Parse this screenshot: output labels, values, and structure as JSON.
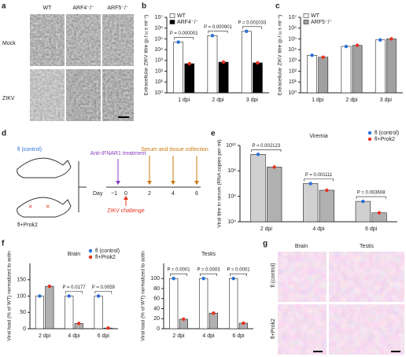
{
  "panel_letters": [
    "a",
    "b",
    "c",
    "d",
    "e",
    "f",
    "g"
  ],
  "panel_a": {
    "columns": [
      "WT",
      "ARF4⁻/⁻",
      "ARF5⁻/⁻"
    ],
    "rows": [
      "Mock",
      "ZIKV"
    ]
  },
  "panel_d": {
    "groups": [
      "fl (control)",
      "fl+Prok2"
    ],
    "treatment": "Anti-IFNAR1 treatment",
    "collection": "Serum and tissue collection",
    "challenge": "ZIKV challenge",
    "day_label": "Day",
    "days": [
      "−1",
      "0",
      "2",
      "4",
      "6"
    ]
  },
  "panel_g": {
    "columns": [
      "Brain",
      "Testis"
    ],
    "rows": [
      "fl (control)",
      "fl+Prok2"
    ]
  },
  "chart_data": [
    {
      "type": "bar",
      "y_label": "Extracellular ZIKV titre (p.f.u.s ml⁻¹)",
      "log_scale": true,
      "legend": "top-left",
      "categories": [
        "1 dpi",
        "2 dpi",
        "3 dpi"
      ],
      "series": [
        {
          "name": "WT",
          "color": "#ffffff",
          "values": [
            50000,
            200000,
            500000
          ]
        },
        {
          "name": "ARF4⁻/⁻",
          "color": "#000000",
          "values": [
            500,
            700,
            600
          ]
        }
      ],
      "mark_colors": [
        "#2a6fdb",
        "#e8321e"
      ],
      "annotations": [
        "P = 0.000001",
        "P = 0.000901",
        "P = 0.001033"
      ],
      "ylim": [
        1,
        10000000
      ],
      "yticks": [
        {
          "value": 1,
          "label": "10⁰"
        },
        {
          "value": 10,
          "label": "10¹"
        },
        {
          "value": 100,
          "label": "10²"
        },
        {
          "value": 1000,
          "label": "10³"
        },
        {
          "value": 10000,
          "label": "10⁴"
        },
        {
          "value": 100000,
          "label": "10⁵"
        },
        {
          "value": 1000000,
          "label": "10⁶"
        },
        {
          "value": 10000000,
          "label": "10⁷"
        }
      ]
    },
    {
      "type": "bar",
      "y_label": "Extracellular ZIKV titre (p.f.u.s ml⁻¹)",
      "log_scale": true,
      "legend": "top-left",
      "categories": [
        "1 dpi",
        "2 dpi",
        "3 dpi"
      ],
      "series": [
        {
          "name": "WT",
          "color": "#ffffff",
          "values": [
            3000,
            20000,
            80000
          ]
        },
        {
          "name": "ARF5⁻/⁻",
          "color": "#a0a0a0",
          "values": [
            2000,
            25000,
            100000
          ]
        }
      ],
      "mark_colors": [
        "#2a6fdb",
        "#e8321e"
      ],
      "ylim": [
        1,
        10000000
      ],
      "yticks": [
        {
          "value": 1,
          "label": "10⁰"
        },
        {
          "value": 10,
          "label": "10¹"
        },
        {
          "value": 100,
          "label": "10²"
        },
        {
          "value": 1000,
          "label": "10³"
        },
        {
          "value": 10000,
          "label": "10⁴"
        },
        {
          "value": 100000,
          "label": "10⁵"
        },
        {
          "value": 1000000,
          "label": "10⁶"
        },
        {
          "value": 10000000,
          "label": "10⁷"
        }
      ]
    },
    {
      "type": "bar",
      "title": "Viremia",
      "y_label": "Viral titre in serum (RNA copies per ml)",
      "log_scale": true,
      "legend": "top-right",
      "categories": [
        "2 dpi",
        "4 dpi",
        "6 dpi"
      ],
      "series": [
        {
          "name": "fl (control)",
          "color": "#d0d0d0",
          "values": [
            2000000000,
            10000000,
            400000
          ]
        },
        {
          "name": "fl+Prok2",
          "color": "#b0b0b0",
          "values": [
            200000000,
            3000000,
            50000
          ]
        }
      ],
      "mark_colors": [
        "#2a6fdb",
        "#e8321e"
      ],
      "annotations": [
        "P = 0.002123",
        "P = 0.001111",
        "P = 0.003608"
      ],
      "ylim": [
        10000,
        10000000000
      ],
      "yticks": [
        {
          "value": 10000,
          "label": "10⁴"
        },
        {
          "value": 1000000,
          "label": "10⁶"
        },
        {
          "value": 100000000,
          "label": "10⁸"
        },
        {
          "value": 10000000000,
          "label": "10¹⁰"
        }
      ]
    },
    {
      "type": "bar",
      "title": "Brain",
      "y_label": "Viral load (% of WT) normalized to actin",
      "log_scale": false,
      "legend": "top-right",
      "categories": [
        "2 dpi",
        "4 dpi",
        "6 dpi"
      ],
      "series": [
        {
          "name": "fl (control)",
          "color": "#ffffff",
          "values": [
            100,
            100,
            100
          ]
        },
        {
          "name": "fl+Prok2",
          "color": "#b0b0b0",
          "values": [
            130,
            16,
            2
          ]
        }
      ],
      "mark_colors": [
        "#2a6fdb",
        "#e8321e"
      ],
      "annotations": [
        null,
        "P = 0.0177",
        "P = 0.0059"
      ],
      "ylim": [
        0,
        200
      ],
      "yticks": [
        0,
        50,
        100,
        150
      ]
    },
    {
      "type": "bar",
      "title": "Testis",
      "y_label": "Viral load (% of WT) normalized to actin",
      "log_scale": false,
      "categories": [
        "2 dpi",
        "4 dpi",
        "6 dpi"
      ],
      "series": [
        {
          "name": "fl (control)",
          "color": "#ffffff",
          "values": [
            100,
            100,
            100
          ]
        },
        {
          "name": "fl+Prok2",
          "color": "#b0b0b0",
          "values": [
            19,
            31,
            11
          ]
        }
      ],
      "mark_colors": [
        "#2a6fdb",
        "#e8321e"
      ],
      "annotations": [
        "P = 0.0001",
        "P = 0.0003",
        "P = 0.0001"
      ],
      "ylim": [
        0,
        130
      ],
      "yticks": [
        0,
        20,
        40,
        60,
        80,
        100
      ]
    }
  ]
}
